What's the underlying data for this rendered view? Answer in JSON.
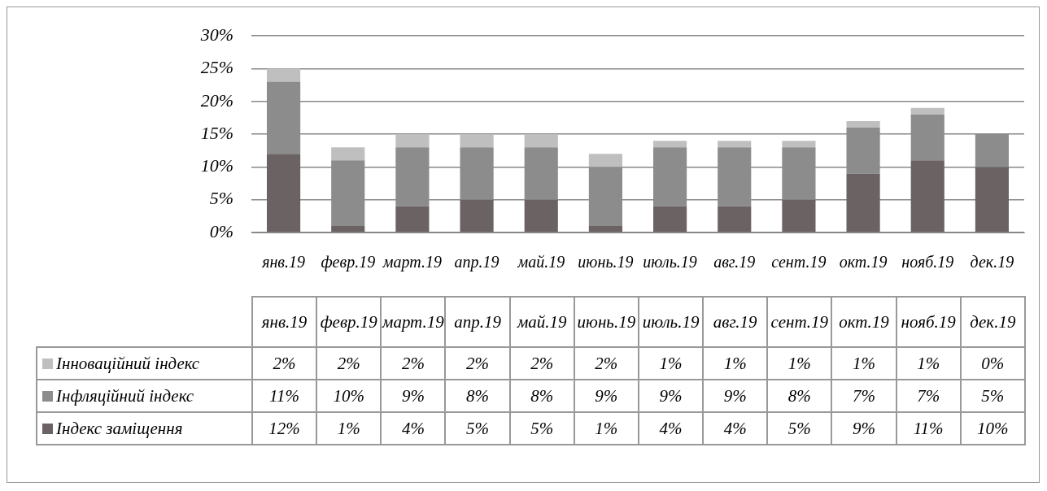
{
  "chart_data": {
    "type": "bar",
    "stacked": true,
    "legend": "bottom",
    "grid": "y",
    "data_labels": true,
    "categories": [
      "янв.19",
      "февр.19",
      "март.19",
      "апр.19",
      "май.19",
      "июнь.19",
      "июль.19",
      "авг.19",
      "сент.19",
      "окт.19",
      "нояб.19",
      "дек.19"
    ],
    "ylim": [
      0,
      30
    ],
    "yticks": [
      {
        "value": 0,
        "label": "0%"
      },
      {
        "value": 5,
        "label": "5%"
      },
      {
        "value": 10,
        "label": "10%"
      },
      {
        "value": 15,
        "label": "15%"
      },
      {
        "value": 20,
        "label": "20%"
      },
      {
        "value": 25,
        "label": "25%"
      },
      {
        "value": 30,
        "label": "30%"
      }
    ],
    "series": [
      {
        "name": "Індекс заміщення",
        "color": "#6b6363",
        "values": [
          12,
          1,
          4,
          5,
          5,
          1,
          4,
          4,
          5,
          9,
          11,
          10
        ],
        "value_labels": [
          "12%",
          "1%",
          "4%",
          "5%",
          "5%",
          "1%",
          "4%",
          "4%",
          "5%",
          "9%",
          "11%",
          "10%"
        ]
      },
      {
        "name": "Інфляційний індекс",
        "color": "#8c8c8c",
        "values": [
          11,
          10,
          9,
          8,
          8,
          9,
          9,
          9,
          8,
          7,
          7,
          5
        ],
        "value_labels": [
          "11%",
          "10%",
          "9%",
          "8%",
          "8%",
          "9%",
          "9%",
          "9%",
          "8%",
          "7%",
          "7%",
          "5%"
        ]
      },
      {
        "name": "Інноваційний індекс",
        "color": "#bfbfbf",
        "values": [
          2,
          2,
          2,
          2,
          2,
          2,
          1,
          1,
          1,
          1,
          1,
          0
        ],
        "value_labels": [
          "2%",
          "2%",
          "2%",
          "2%",
          "2%",
          "2%",
          "1%",
          "1%",
          "1%",
          "1%",
          "1%",
          "0%"
        ]
      }
    ]
  }
}
